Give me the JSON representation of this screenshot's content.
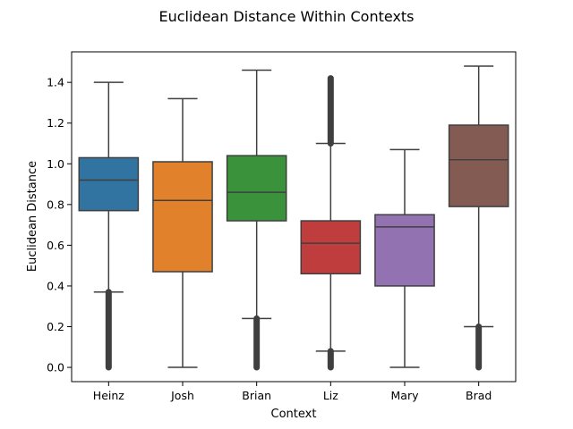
{
  "chart_data": {
    "type": "box",
    "title": "Euclidean Distance Within Contexts",
    "xlabel": "Context",
    "ylabel": "Euclidean Distance",
    "ylim": [
      -0.07,
      1.55
    ],
    "yticks": [
      "0.0",
      "0.2",
      "0.4",
      "0.6",
      "0.8",
      "1.0",
      "1.2",
      "1.4"
    ],
    "grid": false,
    "categories": [
      "Heinz",
      "Josh",
      "Brian",
      "Liz",
      "Mary",
      "Brad"
    ],
    "colors": [
      "#3274a1",
      "#e1812c",
      "#3a923a",
      "#c03d3e",
      "#9372b2",
      "#845b53"
    ],
    "boxes": [
      {
        "name": "Heinz",
        "whisker_low": 0.37,
        "q1": 0.77,
        "median": 0.92,
        "q3": 1.03,
        "whisker_high": 1.4,
        "outliers_low": [
          0.0,
          0.37
        ],
        "outliers_high": null
      },
      {
        "name": "Josh",
        "whisker_low": 0.0,
        "q1": 0.47,
        "median": 0.82,
        "q3": 1.01,
        "whisker_high": 1.32,
        "outliers_low": null,
        "outliers_high": null
      },
      {
        "name": "Brian",
        "whisker_low": 0.24,
        "q1": 0.72,
        "median": 0.86,
        "q3": 1.04,
        "whisker_high": 1.46,
        "outliers_low": [
          0.0,
          0.24
        ],
        "outliers_high": null
      },
      {
        "name": "Liz",
        "whisker_low": 0.08,
        "q1": 0.46,
        "median": 0.61,
        "q3": 0.72,
        "whisker_high": 1.1,
        "outliers_low": [
          0.0,
          0.08
        ],
        "outliers_high": [
          1.1,
          1.42
        ]
      },
      {
        "name": "Mary",
        "whisker_low": 0.0,
        "q1": 0.4,
        "median": 0.69,
        "q3": 0.75,
        "whisker_high": 1.07,
        "outliers_low": null,
        "outliers_high": null
      },
      {
        "name": "Brad",
        "whisker_low": 0.2,
        "q1": 0.79,
        "median": 1.02,
        "q3": 1.19,
        "whisker_high": 1.48,
        "outliers_low": [
          0.0,
          0.2
        ],
        "outliers_high": null
      }
    ]
  }
}
